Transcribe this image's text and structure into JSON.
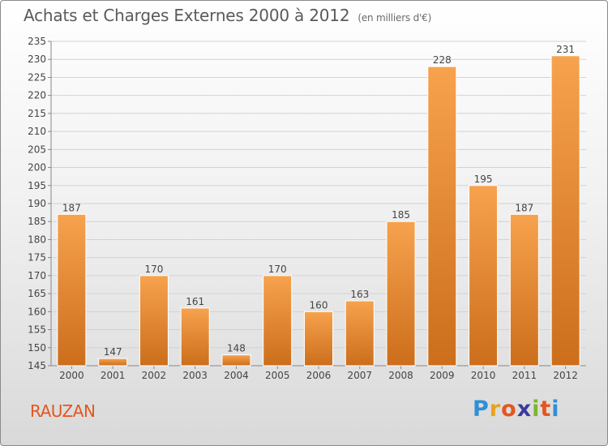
{
  "title": "Achats et Charges Externes 2000 à 2012",
  "subtitle": "(en milliers d'€)",
  "commune": "RAUZAN",
  "logo": {
    "letters": [
      "P",
      "r",
      "o",
      "x",
      "i",
      "t",
      "i"
    ],
    "colors": [
      "#2f8fd6",
      "#e9a21b",
      "#e4561f",
      "#3b3b9e",
      "#7db52f",
      "#e4561f",
      "#2f8fd6"
    ]
  },
  "colors": {
    "bar_top": "#f7a24e",
    "bar_bottom": "#cc6e1b",
    "title": "#5a5a5a",
    "commune": "#e4561f"
  },
  "chart_data": {
    "type": "bar",
    "categories": [
      "2000",
      "2001",
      "2002",
      "2003",
      "2004",
      "2005",
      "2006",
      "2007",
      "2008",
      "2009",
      "2010",
      "2011",
      "2012"
    ],
    "values": [
      187,
      147,
      170,
      161,
      148,
      170,
      160,
      163,
      185,
      228,
      195,
      187,
      231
    ],
    "ylim": [
      145,
      235
    ],
    "yticks": [
      145,
      150,
      155,
      160,
      165,
      170,
      175,
      180,
      185,
      190,
      195,
      200,
      205,
      210,
      215,
      220,
      225,
      230,
      235
    ],
    "grid": true,
    "data_labels": true
  }
}
